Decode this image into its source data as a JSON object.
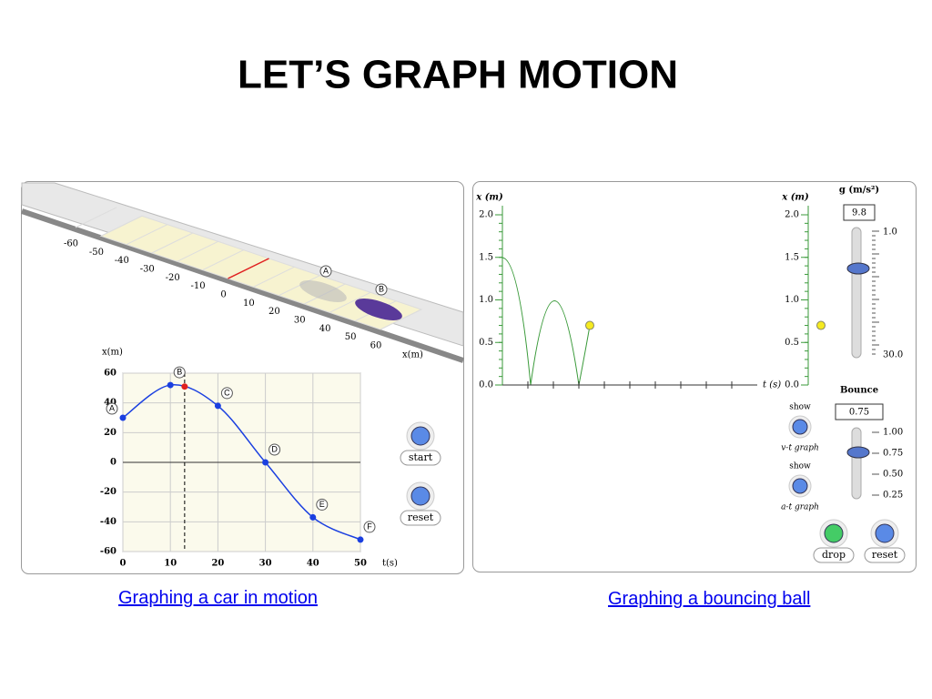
{
  "title": "LET’S GRAPH MOTION",
  "car_sim": {
    "road_labels": [
      -60,
      -50,
      -40,
      -30,
      -20,
      -10,
      0,
      10,
      20,
      30,
      40,
      50,
      60
    ],
    "road_axis": "x(m)",
    "cars": [
      "A",
      "B"
    ],
    "graph": {
      "y_label": "x(m)",
      "x_label": "t(s)",
      "xlim": [
        0,
        50
      ],
      "xticks": [
        0,
        10,
        20,
        30,
        40,
        50
      ],
      "ylim": [
        -60,
        60
      ],
      "yticks": [
        60,
        40,
        20,
        0,
        -20,
        -40,
        -60
      ],
      "points": [
        {
          "label": "A",
          "t": 0,
          "x": 30
        },
        {
          "label": "B",
          "t": 10,
          "x": 52
        },
        {
          "label": "C",
          "t": 20,
          "x": 38
        },
        {
          "label": "D",
          "t": 30,
          "x": 0
        },
        {
          "label": "E",
          "t": 40,
          "x": -37
        },
        {
          "label": "F",
          "t": 50,
          "x": -52
        }
      ],
      "current": {
        "t": 13,
        "x": 51
      }
    },
    "buttons": [
      "start",
      "reset"
    ],
    "link": "Graphing a car in motion"
  },
  "ball_sim": {
    "axis_label": "x (m)",
    "t_label": "t (s)",
    "ylim": [
      0,
      2.0
    ],
    "yticks": [
      {
        "value": 2,
        "label": "2.0"
      },
      {
        "value": 1.5,
        "label": "1.5"
      },
      {
        "value": 1,
        "label": "1.0"
      },
      {
        "value": 0.5,
        "label": "0.5"
      },
      {
        "value": 0,
        "label": "0.0"
      }
    ],
    "ball_height": 0.7,
    "g_label": "g (m/s²)",
    "g_value": "9.8",
    "g_scale": [
      "1.0",
      "30.0"
    ],
    "bounce_label": "Bounce",
    "bounce_value": "0.75",
    "bounce_scale": [
      "1.00",
      "0.75",
      "0.50",
      "0.25"
    ],
    "show_vt": [
      "show",
      "v-t graph"
    ],
    "show_at": [
      "show",
      "a-t graph"
    ],
    "buttons": [
      "drop",
      "reset"
    ],
    "link": "Graphing a bouncing ball"
  }
}
